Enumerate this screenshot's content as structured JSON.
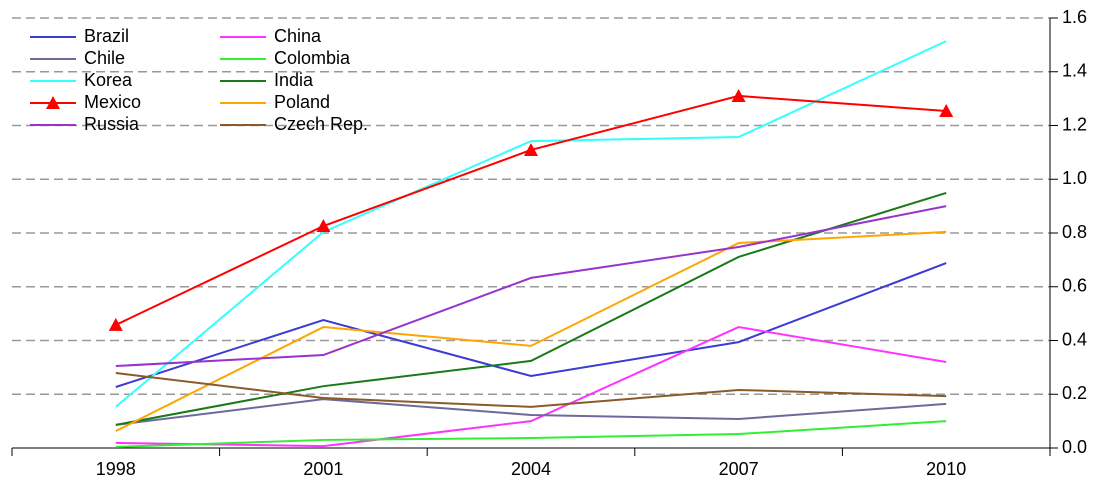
{
  "chart_data": {
    "type": "line",
    "categories": [
      "1998",
      "2001",
      "2004",
      "2007",
      "2010"
    ],
    "series": [
      {
        "name": "Brazil",
        "color": "#3b3bd6",
        "values": [
          0.227,
          0.476,
          0.268,
          0.394,
          0.688
        ]
      },
      {
        "name": "China",
        "color": "#ff33ff",
        "values": [
          0.019,
          0.007,
          0.1,
          0.45,
          0.32
        ]
      },
      {
        "name": "Chile",
        "color": "#6b6b9b",
        "values": [
          0.086,
          0.182,
          0.123,
          0.108,
          0.164
        ]
      },
      {
        "name": "Colombia",
        "color": "#33ee33",
        "values": [
          0.004,
          0.03,
          0.037,
          0.052,
          0.1
        ]
      },
      {
        "name": "Korea",
        "color": "#33ffff",
        "values": [
          0.153,
          0.804,
          1.142,
          1.157,
          1.514
        ]
      },
      {
        "name": "India",
        "color": "#1a7a1a",
        "values": [
          0.086,
          0.23,
          0.324,
          0.711,
          0.949
        ]
      },
      {
        "name": "Mexico",
        "color": "#ff0000",
        "marker": "triangle",
        "values": [
          0.458,
          0.826,
          1.109,
          1.31,
          1.254
        ]
      },
      {
        "name": "Poland",
        "color": "#ffa500",
        "values": [
          0.063,
          0.45,
          0.38,
          0.763,
          0.804
        ]
      },
      {
        "name": "Russia",
        "color": "#9933cc",
        "values": [
          0.305,
          0.346,
          0.633,
          0.748,
          0.9
        ]
      },
      {
        "name": "Czech Rep.",
        "color": "#8b5a2b",
        "values": [
          0.279,
          0.186,
          0.153,
          0.216,
          0.193
        ]
      }
    ],
    "ylim": [
      0,
      1.6
    ],
    "yticks": [
      {
        "value": 0,
        "label": "0.0"
      },
      0.2,
      0.4,
      0.6,
      0.8,
      {
        "value": 1,
        "label": "1.0"
      },
      1.2,
      1.4,
      1.6
    ],
    "grid": true,
    "y_axis_side": "right",
    "legend": "upper left"
  }
}
